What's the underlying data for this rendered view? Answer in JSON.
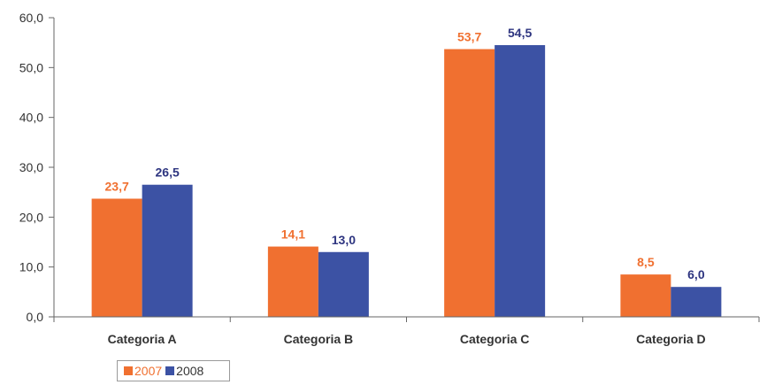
{
  "chart_data": {
    "type": "bar",
    "categories": [
      "Categoria A",
      "Categoria B",
      "Categoria C",
      "Categoria D"
    ],
    "series": [
      {
        "name": "2007",
        "values": [
          23.7,
          14.1,
          53.7,
          8.5
        ],
        "color": "#f07030",
        "labels": [
          "23,7",
          "14,1",
          "53,7",
          "8,5"
        ]
      },
      {
        "name": "2008",
        "values": [
          26.5,
          13.0,
          54.5,
          6.0
        ],
        "color": "#3c52a4",
        "labels": [
          "26,5",
          "13,0",
          "54,5",
          "6,0"
        ]
      }
    ],
    "yticks": [
      0,
      10,
      20,
      30,
      40,
      50,
      60
    ],
    "ytick_labels": [
      "0,0",
      "10,0",
      "20,0",
      "30,0",
      "40,0",
      "50,0",
      "60,0"
    ],
    "ylim": [
      0,
      60
    ],
    "grid": false,
    "legend_position": "bottom-left",
    "label_colors": {
      "2007": "#f07030",
      "2008": "#2e3580"
    },
    "axis_color": "#666666"
  }
}
